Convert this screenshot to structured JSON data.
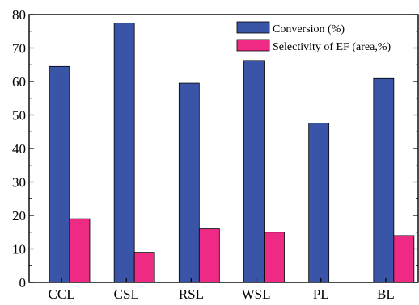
{
  "chart_data": {
    "type": "bar",
    "title": "",
    "xlabel": "",
    "ylabel": "",
    "categories": [
      "CCL",
      "CSL",
      "RSL",
      "WSL",
      "PL",
      "BL"
    ],
    "series": [
      {
        "name": "Conversion (%)",
        "color": "#3a55a8",
        "values": [
          64.5,
          77.5,
          59.5,
          66.3,
          47.6,
          60.9
        ]
      },
      {
        "name": "Selectivity of EF (area,%)",
        "color": "#ee2a85",
        "values": [
          19.0,
          9.0,
          16.0,
          15.0,
          null,
          14.0
        ]
      }
    ],
    "ylim": [
      0,
      80
    ],
    "yticks": [
      0,
      10,
      20,
      30,
      40,
      50,
      60,
      70,
      80
    ],
    "grid": false,
    "legend": "top-right"
  }
}
